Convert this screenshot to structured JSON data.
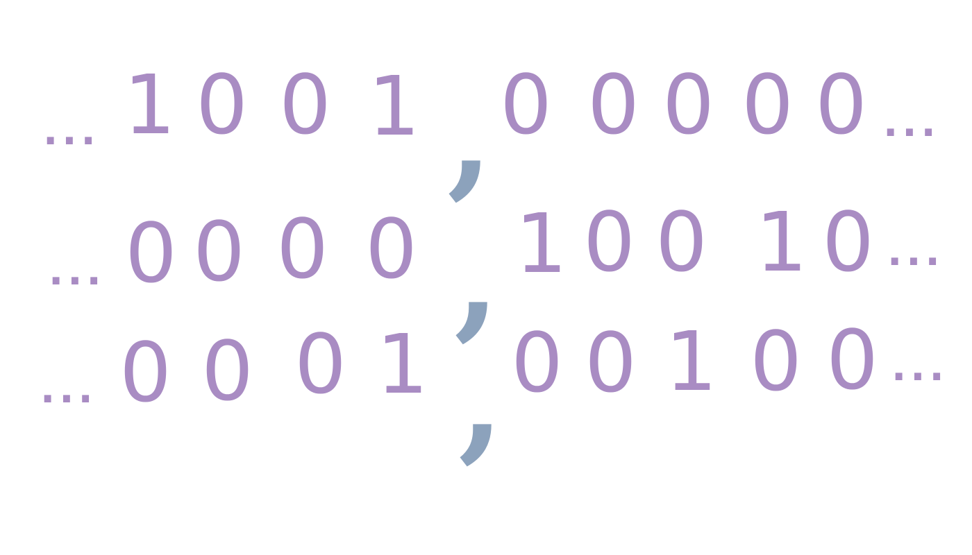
{
  "colors": {
    "digits": "#a98cc3",
    "separator": "#8ca2bc",
    "background": "#ffffff"
  },
  "rows": [
    {
      "lead": "...",
      "left_digits": [
        "1",
        "0",
        "0",
        "1"
      ],
      "separator": ",",
      "right_digits": [
        "0",
        "0",
        "0",
        "0",
        "0"
      ],
      "trail": "..."
    },
    {
      "lead": "...",
      "left_digits": [
        "0",
        "0",
        "0",
        "0"
      ],
      "separator": ",",
      "right_digits": [
        "1",
        "0",
        "0",
        "1",
        "0"
      ],
      "trail": "..."
    },
    {
      "lead": "...",
      "left_digits": [
        "0",
        "0",
        "0",
        "1"
      ],
      "separator": ",",
      "right_digits": [
        "0",
        "0",
        "1",
        "0",
        "0"
      ],
      "trail": "..."
    }
  ]
}
